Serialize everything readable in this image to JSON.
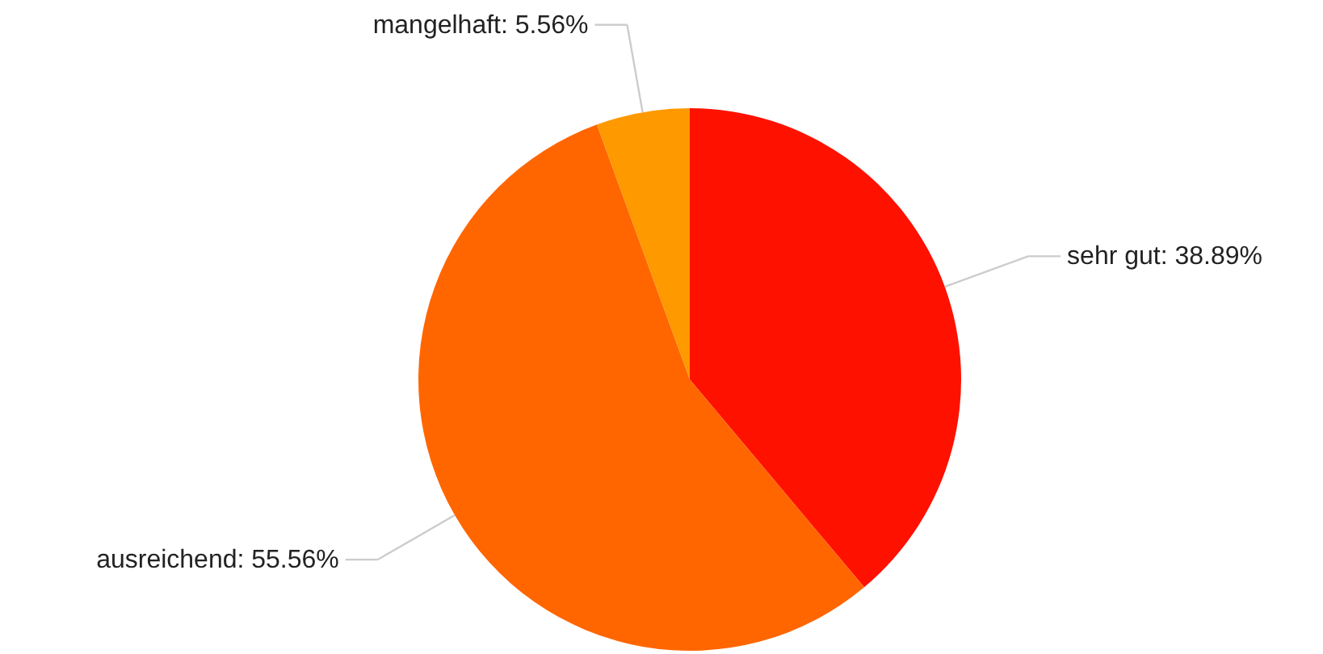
{
  "chart_data": {
    "type": "pie",
    "categories": [
      "sehr gut",
      "ausreichend",
      "mangelhaft"
    ],
    "values": [
      38.89,
      55.56,
      5.56
    ],
    "value_labels": [
      "38.89%",
      "55.56%",
      "5.56%"
    ],
    "colors": [
      "#ff1100",
      "#ff6600",
      "#ff9900"
    ]
  }
}
